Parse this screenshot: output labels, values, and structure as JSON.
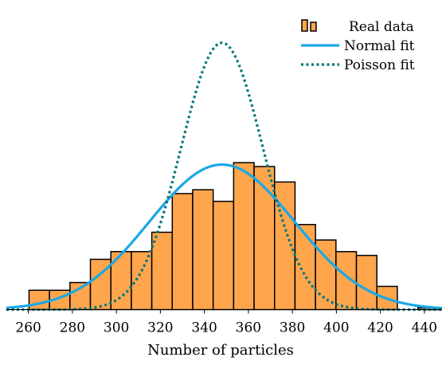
{
  "chart_data": {
    "type": "bar",
    "xlabel": "Number of particles",
    "ylabel": "",
    "xlim": [
      250,
      448
    ],
    "ylim": [
      0,
      78
    ],
    "x_ticks": [
      "260",
      "280",
      "300",
      "320",
      "340",
      "360",
      "380",
      "400",
      "420",
      "440"
    ],
    "bin_width": 9.3,
    "grid": false,
    "legend_position": "top-right",
    "bar_fill": "#ffa64d",
    "bar_stroke": "#000000",
    "series": [
      {
        "name": "Real data",
        "type": "bar",
        "bins": [
          {
            "x": 260.3,
            "value": 5
          },
          {
            "x": 269.6,
            "value": 5
          },
          {
            "x": 278.9,
            "value": 7
          },
          {
            "x": 288.2,
            "value": 13
          },
          {
            "x": 297.5,
            "value": 15
          },
          {
            "x": 306.8,
            "value": 15
          },
          {
            "x": 316.1,
            "value": 20
          },
          {
            "x": 325.4,
            "value": 30
          },
          {
            "x": 334.7,
            "value": 31
          },
          {
            "x": 344.0,
            "value": 28
          },
          {
            "x": 353.3,
            "value": 38
          },
          {
            "x": 362.6,
            "value": 37
          },
          {
            "x": 371.9,
            "value": 33
          },
          {
            "x": 381.2,
            "value": 22
          },
          {
            "x": 390.5,
            "value": 18
          },
          {
            "x": 399.8,
            "value": 15
          },
          {
            "x": 409.1,
            "value": 14
          },
          {
            "x": 418.4,
            "value": 6
          },
          {
            "x": 437.0,
            "value": 0.5
          }
        ]
      },
      {
        "name": "Normal fit",
        "type": "line",
        "color": "#1aa7e8",
        "dash": "solid",
        "mean": 348,
        "std": 33,
        "peak": 37.5
      },
      {
        "name": "Poisson fit",
        "type": "line",
        "color": "#007777",
        "dash": "dotted",
        "mean": 348,
        "std": 18.6,
        "peak": 69
      }
    ]
  }
}
